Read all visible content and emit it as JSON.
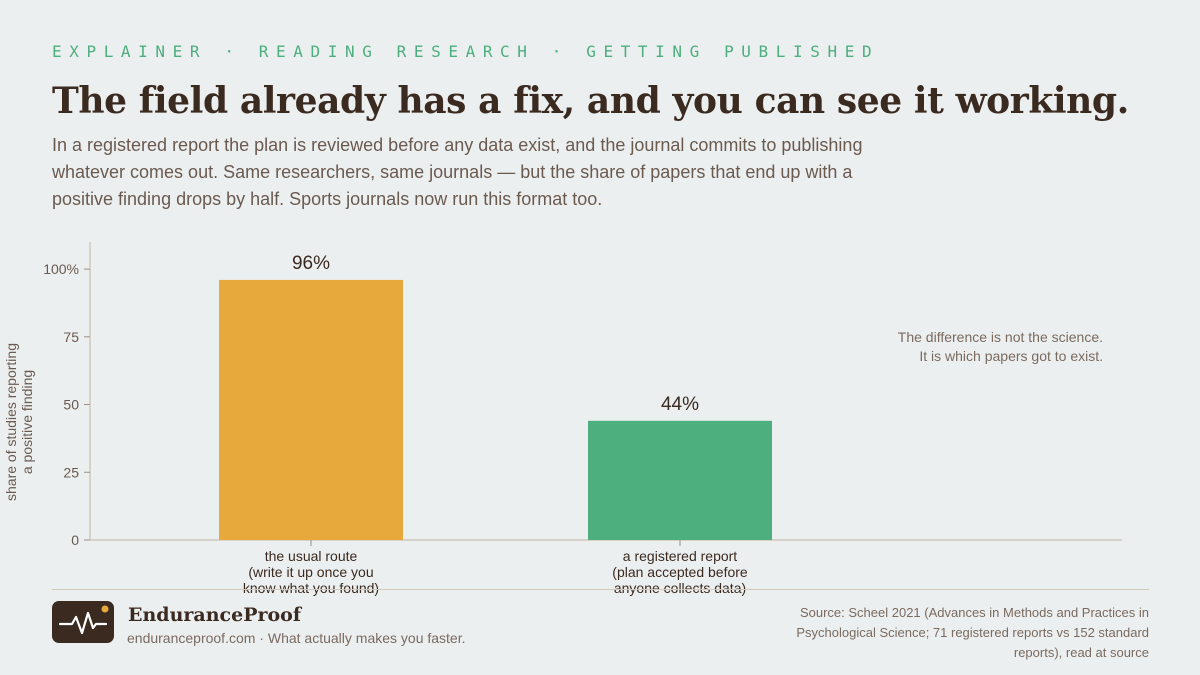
{
  "kicker": "EXPLAINER · READING RESEARCH · GETTING PUBLISHED",
  "headline": "The field already has a fix, and you can see it working.",
  "subtitle": "In a registered report the plan is reviewed before any data exist, and the journal commits to publishing whatever comes out. Same researchers, same journals — but the share of papers that end up with a positive finding drops by half. Sports journals now run this format too.",
  "chart_data": {
    "type": "bar",
    "categories": [
      [
        "the usual route",
        "(write it up once you",
        "know what you found)"
      ],
      [
        "a registered report",
        "(plan accepted before",
        "anyone collects data)"
      ]
    ],
    "values": [
      96,
      44
    ],
    "value_labels": [
      "96%",
      "44%"
    ],
    "colors": [
      "#e8a93c",
      "#4caf7d"
    ],
    "ylabel": [
      "share of studies reporting",
      "a positive finding"
    ],
    "ylim": [
      0,
      110
    ],
    "yticks": [
      0,
      25,
      50,
      75,
      100
    ],
    "ytick_labels": [
      "0",
      "25",
      "50",
      "75",
      "100%"
    ],
    "annotation": [
      "The difference is not the science.",
      "It is which papers got to exist."
    ],
    "grid": false
  },
  "footer": {
    "brand": "EnduranceProof",
    "tagline": "enduranceproof.com · What actually makes you faster.",
    "source": "Source: Scheel 2021 (Advances in Methods and Practices in Psychological Science; 71 registered reports vs 152 standard reports), read at source"
  },
  "colors": {
    "background": "#eceff0",
    "accent_green": "#4caf7d",
    "accent_orange": "#e8a93c",
    "ink": "#3a2a20",
    "muted": "#6a5a50"
  },
  "icons": {
    "logo": "heartbeat-pulse-icon"
  }
}
